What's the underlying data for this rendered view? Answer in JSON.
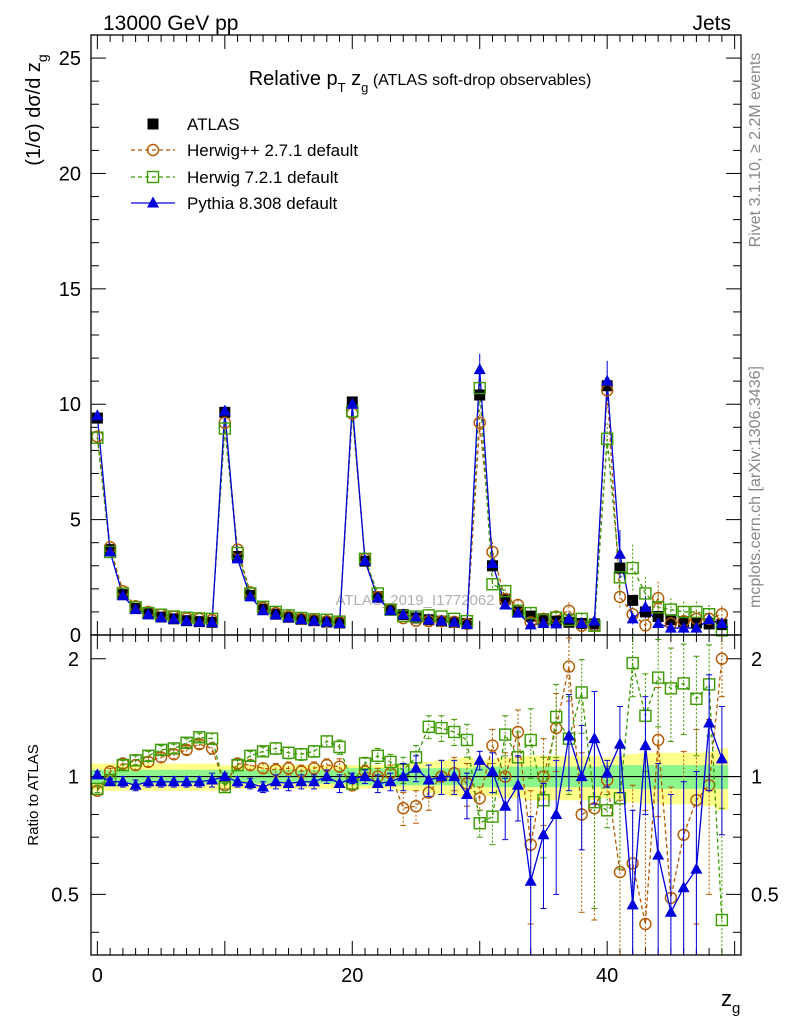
{
  "header": {
    "left": "13000 GeV pp",
    "right": "Jets"
  },
  "side_labels": {
    "rivet": "Rivet 3.1.10, ≥ 2.2M events",
    "mcplots": "mcplots.cern.ch [arXiv:1306.3436]"
  },
  "title": {
    "main": "Relative p",
    "sub_T": "T",
    "mid": " z",
    "sub_g": "g",
    "tail": " (ATLAS soft-drop observables)"
  },
  "watermark": "ATLAS_2019_I1772062",
  "ylabel_main": "(1/σ) dσ/d z",
  "ylabel_main_sub": "g",
  "ylabel_ratio": "Ratio to ATLAS",
  "xlabel": "z",
  "xlabel_sub": "g",
  "legend": [
    {
      "label": "ATLAS",
      "color": "#000000",
      "marker": "square-filled"
    },
    {
      "label": "Herwig++ 2.7.1 default",
      "color": "#b35900",
      "marker": "circle-open"
    },
    {
      "label": "Herwig 7.2.1 default",
      "color": "#3a9a00",
      "marker": "square-open"
    },
    {
      "label": "Pythia 8.308 default",
      "color": "#0000dd",
      "marker": "triangle-filled"
    }
  ],
  "chart_data": {
    "type": "line",
    "title": "Relative pT zg (ATLAS soft-drop observables)",
    "xlabel": "zg",
    "ylabel": "(1/σ) dσ/d zg",
    "xlim": [
      -0.5,
      50.5
    ],
    "ylim": [
      0,
      26
    ],
    "ratio_ylim": [
      0.35,
      2.3
    ],
    "xticks": [
      0,
      20,
      40
    ],
    "yticks": [
      0,
      5,
      10,
      15,
      20,
      25
    ],
    "ratio_yticks": [
      0.5,
      1,
      2
    ],
    "x": [
      0,
      1,
      2,
      3,
      4,
      5,
      6,
      7,
      8,
      9,
      10,
      11,
      12,
      13,
      14,
      15,
      16,
      17,
      18,
      19,
      20,
      21,
      22,
      23,
      24,
      25,
      26,
      27,
      28,
      29,
      30,
      31,
      32,
      33,
      34,
      35,
      36,
      37,
      38,
      39,
      40,
      41,
      42,
      43,
      44,
      45,
      46,
      47,
      48,
      49
    ],
    "series": [
      {
        "name": "ATLAS",
        "values": [
          9.4,
          3.7,
          1.75,
          1.15,
          0.92,
          0.78,
          0.7,
          0.62,
          0.58,
          0.55,
          9.65,
          3.4,
          1.72,
          1.12,
          0.9,
          0.77,
          0.68,
          0.62,
          0.56,
          0.52,
          10.1,
          3.2,
          1.66,
          1.08,
          0.88,
          0.74,
          0.66,
          0.6,
          0.55,
          0.5,
          10.4,
          3.0,
          1.55,
          1.0,
          0.82,
          0.7,
          0.6,
          0.55,
          0.5,
          0.48,
          10.8,
          2.9,
          1.5,
          1.0,
          0.8,
          0.66,
          0.58,
          0.52,
          0.48,
          0.45
        ],
        "ratio_band_stat": [
          0.04,
          0.04,
          0.04,
          0.04,
          0.04,
          0.04,
          0.04,
          0.04,
          0.04,
          0.04,
          0.04,
          0.04,
          0.04,
          0.04,
          0.04,
          0.04,
          0.04,
          0.04,
          0.04,
          0.04,
          0.05,
          0.05,
          0.05,
          0.05,
          0.05,
          0.05,
          0.05,
          0.05,
          0.05,
          0.05,
          0.06,
          0.06,
          0.06,
          0.06,
          0.06,
          0.06,
          0.06,
          0.06,
          0.06,
          0.06,
          0.07,
          0.07,
          0.07,
          0.07,
          0.07,
          0.07,
          0.07,
          0.07,
          0.07,
          0.07
        ],
        "ratio_band_total": [
          0.08,
          0.08,
          0.08,
          0.08,
          0.08,
          0.08,
          0.08,
          0.08,
          0.08,
          0.08,
          0.07,
          0.07,
          0.07,
          0.07,
          0.07,
          0.07,
          0.07,
          0.07,
          0.07,
          0.07,
          0.07,
          0.07,
          0.07,
          0.07,
          0.08,
          0.08,
          0.09,
          0.1,
          0.11,
          0.12,
          0.1,
          0.11,
          0.12,
          0.12,
          0.13,
          0.13,
          0.13,
          0.13,
          0.13,
          0.13,
          0.12,
          0.13,
          0.14,
          0.15,
          0.15,
          0.15,
          0.15,
          0.15,
          0.16,
          0.18
        ]
      },
      {
        "name": "Herwig++ 2.7.1 default",
        "values": [
          8.6,
          3.8,
          1.9,
          1.25,
          1.0,
          0.88,
          0.8,
          0.72,
          0.7,
          0.65,
          9.2,
          3.7,
          1.85,
          1.18,
          0.95,
          0.8,
          0.7,
          0.65,
          0.6,
          0.56,
          9.6,
          3.3,
          1.65,
          1.1,
          0.73,
          0.62,
          0.6,
          0.6,
          0.57,
          0.48,
          9.2,
          3.6,
          1.55,
          1.3,
          0.55,
          0.7,
          0.8,
          1.05,
          0.4,
          0.4,
          10.6,
          1.65,
          0.9,
          0.42,
          1.6,
          0.5,
          0.6,
          0.7,
          0.7,
          0.9
        ],
        "ratio": [
          0.92,
          1.03,
          1.08,
          1.07,
          1.09,
          1.12,
          1.14,
          1.17,
          1.21,
          1.18,
          0.95,
          1.08,
          1.07,
          1.05,
          1.04,
          1.05,
          1.03,
          1.05,
          1.07,
          1.06,
          0.95,
          1.03,
          1.0,
          1.02,
          0.83,
          0.84,
          0.91,
          1.0,
          1.02,
          0.96,
          0.88,
          1.2,
          1.0,
          1.3,
          0.67,
          1.0,
          1.33,
          1.91,
          0.8,
          0.83,
          0.98,
          0.57,
          0.6,
          0.42,
          1.24,
          0.49,
          0.71,
          0.87,
          0.95,
          2.0
        ],
        "ratio_err": [
          0.02,
          0.02,
          0.03,
          0.03,
          0.03,
          0.03,
          0.03,
          0.03,
          0.03,
          0.04,
          0.02,
          0.03,
          0.03,
          0.03,
          0.04,
          0.04,
          0.04,
          0.04,
          0.04,
          0.05,
          0.03,
          0.04,
          0.05,
          0.05,
          0.08,
          0.08,
          0.09,
          0.1,
          0.1,
          0.12,
          0.06,
          0.12,
          0.15,
          0.18,
          0.25,
          0.25,
          0.3,
          0.35,
          0.35,
          0.4,
          0.08,
          0.3,
          0.35,
          0.4,
          0.45,
          0.45,
          0.45,
          0.45,
          0.45,
          0.4
        ]
      },
      {
        "name": "Herwig 7.2.1 default",
        "values": [
          8.55,
          3.6,
          1.8,
          1.2,
          0.95,
          0.88,
          0.8,
          0.75,
          0.72,
          0.7,
          8.95,
          3.55,
          1.8,
          1.22,
          1.0,
          0.85,
          0.74,
          0.68,
          0.66,
          0.58,
          9.7,
          3.3,
          1.8,
          1.1,
          0.82,
          0.8,
          0.85,
          0.8,
          0.7,
          0.6,
          10.7,
          2.2,
          1.9,
          1.05,
          0.95,
          0.65,
          0.75,
          0.65,
          0.7,
          0.4,
          8.5,
          2.5,
          2.9,
          1.8,
          1.2,
          1.1,
          1.0,
          1.0,
          0.9,
          0.2
        ],
        "ratio": [
          0.93,
          0.98,
          1.07,
          1.1,
          1.13,
          1.17,
          1.18,
          1.22,
          1.26,
          1.25,
          0.94,
          1.07,
          1.13,
          1.16,
          1.18,
          1.15,
          1.14,
          1.16,
          1.23,
          1.19,
          0.96,
          1.08,
          1.13,
          1.09,
          1.04,
          1.12,
          1.34,
          1.33,
          1.3,
          1.24,
          0.76,
          0.79,
          1.28,
          1.12,
          1.24,
          0.87,
          1.42,
          1.25,
          1.64,
          0.86,
          0.82,
          0.88,
          1.95,
          1.43,
          1.79,
          1.68,
          1.73,
          1.58,
          1.72,
          0.43
        ],
        "ratio_err": [
          0.02,
          0.02,
          0.03,
          0.03,
          0.03,
          0.03,
          0.03,
          0.03,
          0.03,
          0.04,
          0.02,
          0.03,
          0.03,
          0.03,
          0.04,
          0.04,
          0.04,
          0.04,
          0.04,
          0.05,
          0.03,
          0.04,
          0.05,
          0.05,
          0.08,
          0.08,
          0.09,
          0.1,
          0.1,
          0.12,
          0.06,
          0.12,
          0.15,
          0.18,
          0.25,
          0.25,
          0.3,
          0.35,
          0.35,
          0.4,
          0.08,
          0.3,
          0.35,
          0.4,
          0.45,
          0.45,
          0.45,
          0.45,
          0.45,
          0.4
        ]
      },
      {
        "name": "Pythia 8.308 default",
        "values": [
          9.5,
          3.6,
          1.7,
          1.1,
          0.88,
          0.75,
          0.68,
          0.6,
          0.56,
          0.54,
          9.7,
          3.3,
          1.65,
          1.05,
          0.87,
          0.74,
          0.66,
          0.6,
          0.56,
          0.5,
          10.0,
          3.2,
          1.6,
          1.05,
          0.88,
          0.78,
          0.65,
          0.6,
          0.55,
          0.45,
          11.5,
          3.1,
          1.3,
          0.95,
          0.44,
          0.5,
          0.48,
          0.7,
          0.5,
          0.6,
          11.0,
          3.5,
          0.7,
          1.2,
          0.5,
          0.3,
          0.3,
          0.3,
          0.66,
          0.5
        ],
        "ratio": [
          1.01,
          0.97,
          0.97,
          0.95,
          0.97,
          0.97,
          0.97,
          0.97,
          0.97,
          0.98,
          1.0,
          0.97,
          0.96,
          0.94,
          0.97,
          0.96,
          0.97,
          0.97,
          1.0,
          0.96,
          0.99,
          1.0,
          0.96,
          0.97,
          1.0,
          1.05,
          0.98,
          1.0,
          1.0,
          0.9,
          1.1,
          1.03,
          0.84,
          0.95,
          0.54,
          0.71,
          0.8,
          1.27,
          1.0,
          1.25,
          1.02,
          1.21,
          0.47,
          1.2,
          0.63,
          0.45,
          0.52,
          0.58,
          1.37,
          1.11
        ],
        "ratio_err": [
          0.02,
          0.02,
          0.03,
          0.03,
          0.03,
          0.03,
          0.03,
          0.03,
          0.03,
          0.04,
          0.02,
          0.03,
          0.03,
          0.03,
          0.04,
          0.04,
          0.04,
          0.04,
          0.04,
          0.05,
          0.03,
          0.04,
          0.05,
          0.05,
          0.08,
          0.08,
          0.09,
          0.1,
          0.1,
          0.12,
          0.06,
          0.12,
          0.15,
          0.18,
          0.25,
          0.25,
          0.3,
          0.35,
          0.35,
          0.4,
          0.08,
          0.3,
          0.35,
          0.4,
          0.45,
          0.45,
          0.45,
          0.45,
          0.45,
          0.4
        ]
      }
    ]
  }
}
